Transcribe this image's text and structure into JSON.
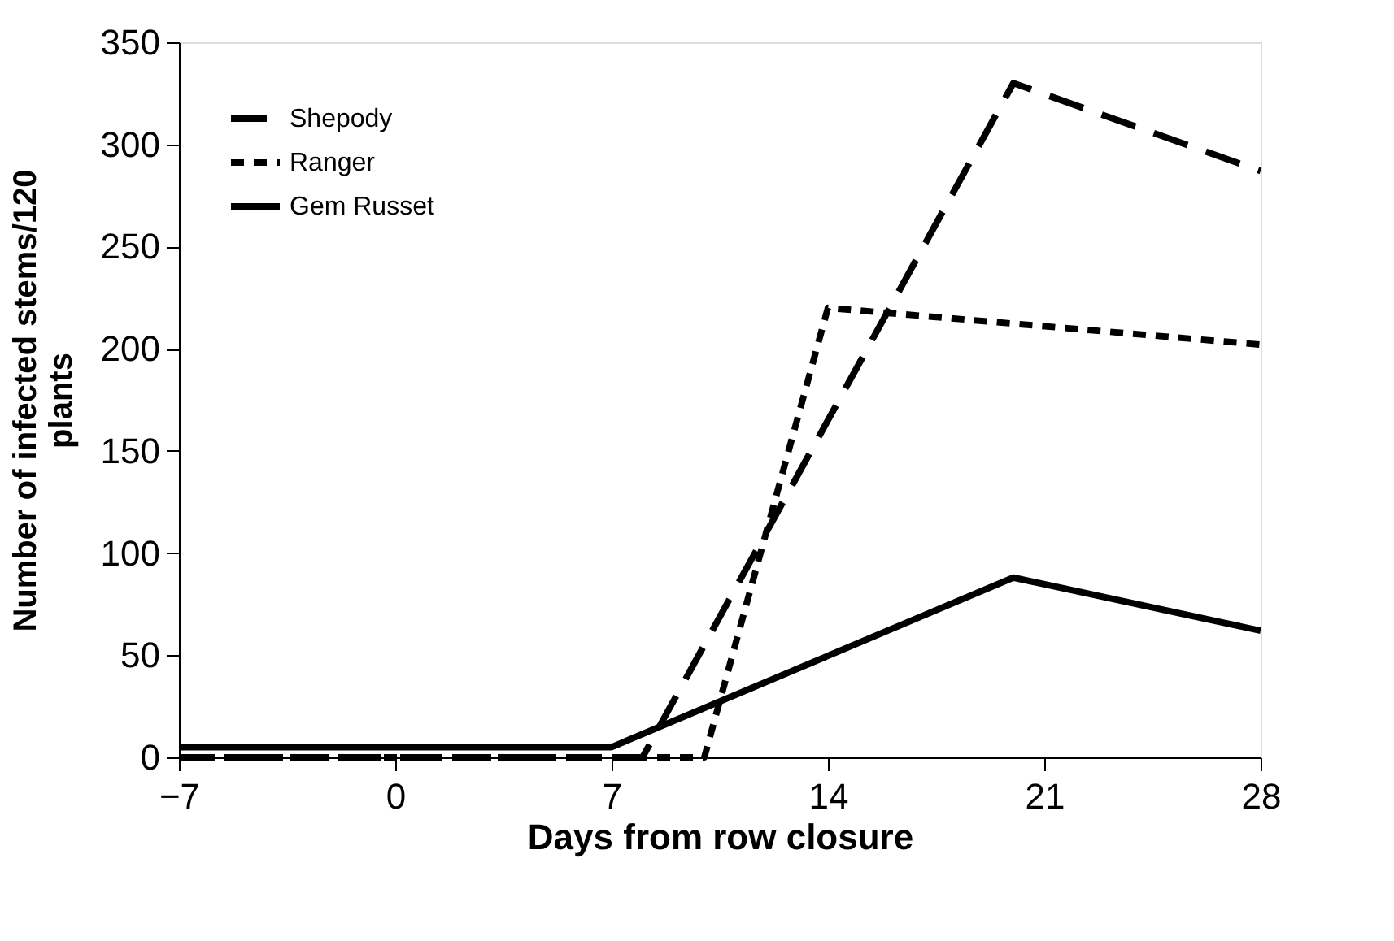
{
  "chart_data": {
    "type": "line",
    "xlabel": "Days from row closure",
    "ylabel": "Number of infected stems/120 plants",
    "xlim": [
      -7,
      28
    ],
    "xticks": [
      -7,
      0,
      7,
      14,
      21,
      28
    ],
    "ylim": [
      0,
      350
    ],
    "yticks": [
      0,
      50,
      100,
      150,
      200,
      250,
      300,
      350
    ],
    "grid": false,
    "legend": "top left",
    "marker": "none",
    "series": [
      {
        "name": "Shepody",
        "color": "#000000",
        "line_style": "dashed",
        "x": [
          -7,
          8,
          20,
          28
        ],
        "values": [
          0,
          0,
          330,
          287
        ]
      },
      {
        "name": "Ranger",
        "color": "#000000",
        "line_style": "dotted",
        "x": [
          -7,
          10,
          14,
          28
        ],
        "values": [
          0,
          0,
          220,
          202
        ]
      },
      {
        "name": "Gem Russet",
        "color": "#000000",
        "line_style": "solid",
        "x": [
          -7,
          7,
          20,
          28
        ],
        "values": [
          5,
          5,
          88,
          62
        ]
      }
    ]
  }
}
